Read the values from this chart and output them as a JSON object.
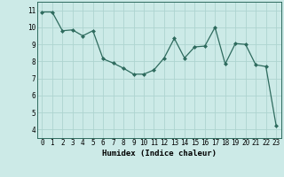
{
  "x": [
    0,
    1,
    2,
    3,
    4,
    5,
    6,
    7,
    8,
    9,
    10,
    11,
    12,
    13,
    14,
    15,
    16,
    17,
    18,
    19,
    20,
    21,
    22,
    23
  ],
  "y": [
    10.9,
    10.9,
    9.8,
    9.85,
    9.5,
    9.8,
    8.15,
    7.9,
    7.6,
    7.25,
    7.25,
    7.5,
    8.2,
    9.35,
    8.2,
    8.85,
    8.9,
    10.0,
    7.85,
    9.05,
    9.0,
    7.8,
    7.7,
    4.25
  ],
  "line_color": "#2e6b5e",
  "marker": "D",
  "marker_size": 2.0,
  "bg_color": "#cceae7",
  "grid_color": "#aed4d0",
  "xlabel": "Humidex (Indice chaleur)",
  "ylim": [
    3.5,
    11.5
  ],
  "xlim": [
    -0.5,
    23.5
  ],
  "yticks": [
    4,
    5,
    6,
    7,
    8,
    9,
    10,
    11
  ],
  "xticks": [
    0,
    1,
    2,
    3,
    4,
    5,
    6,
    7,
    8,
    9,
    10,
    11,
    12,
    13,
    14,
    15,
    16,
    17,
    18,
    19,
    20,
    21,
    22,
    23
  ],
  "axis_fontsize": 6.5,
  "tick_fontsize": 5.5,
  "linewidth": 0.9
}
